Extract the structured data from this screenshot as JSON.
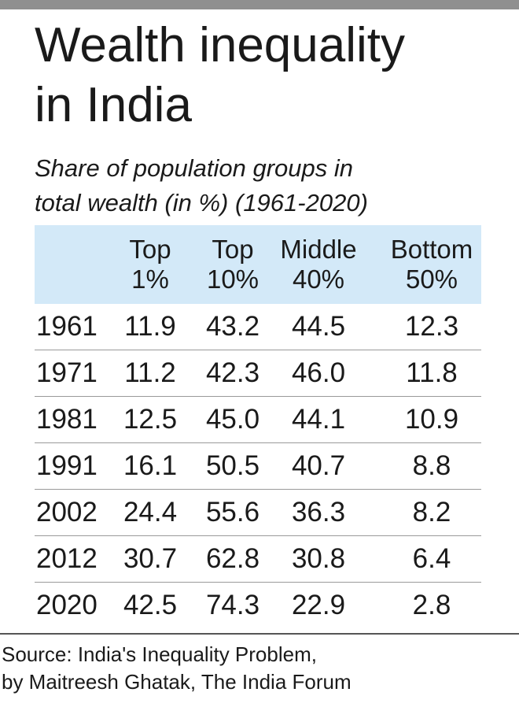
{
  "header": {
    "title_line1": "Wealth inequality",
    "title_line2": "in India",
    "subtitle_line1": "Share of population groups in",
    "subtitle_line2": "total wealth (in %) (1961-2020)"
  },
  "chart_data": {
    "type": "table",
    "title": "Wealth inequality in India",
    "subtitle": "Share of population groups in total wealth (in %) (1961-2020)",
    "columns": [
      {
        "line1": "Top",
        "line2": "1%"
      },
      {
        "line1": "Top",
        "line2": "10%"
      },
      {
        "line1": "Middle",
        "line2": "40%"
      },
      {
        "line1": "Bottom",
        "line2": "50%"
      }
    ],
    "rows": [
      {
        "year": "1961",
        "values": [
          "11.9",
          "43.2",
          "44.5",
          "12.3"
        ]
      },
      {
        "year": "1971",
        "values": [
          "11.2",
          "42.3",
          "46.0",
          "11.8"
        ]
      },
      {
        "year": "1981",
        "values": [
          "12.5",
          "45.0",
          "44.1",
          "10.9"
        ]
      },
      {
        "year": "1991",
        "values": [
          "16.1",
          "50.5",
          "40.7",
          "8.8"
        ]
      },
      {
        "year": "2002",
        "values": [
          "24.4",
          "55.6",
          "36.3",
          "8.2"
        ]
      },
      {
        "year": "2012",
        "values": [
          "30.7",
          "62.8",
          "30.8",
          "6.4"
        ]
      },
      {
        "year": "2020",
        "values": [
          "42.5",
          "74.3",
          "22.9",
          "2.8"
        ]
      }
    ]
  },
  "source": {
    "line1": "Source: India's Inequality Problem,",
    "line2": "by Maitreesh Ghatak, The India Forum"
  },
  "colors": {
    "header_band": "#d3e9f8",
    "top_bar": "#8f8f8f",
    "text": "#1a1a1a"
  }
}
